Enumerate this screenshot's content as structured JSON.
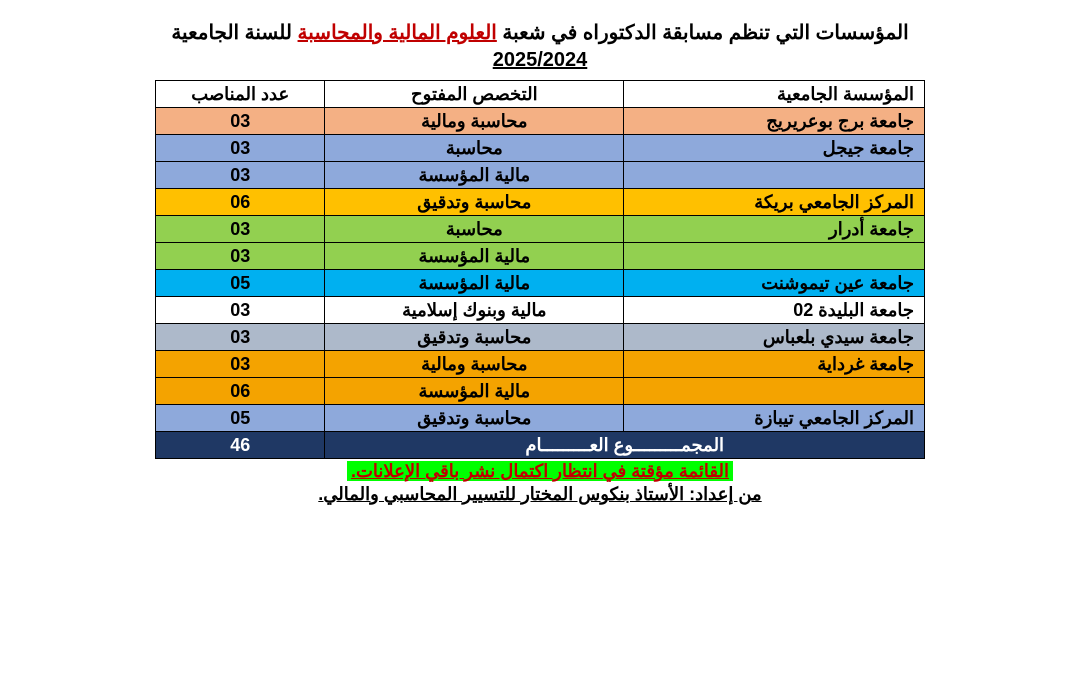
{
  "title_pre": "المؤسسات التي تنظم مسابقة الدكتوراه في شعبة ",
  "title_highlight": "العلوم المالية والمحاسبة",
  "title_post": " للسنة الجامعية",
  "year": "2025/2024",
  "headers": {
    "institution": "المؤسسة الجامعية",
    "speciality": "التخصص المفتوح",
    "positions": "عدد المناصب"
  },
  "colors": {
    "salmon": "#f4b084",
    "blue": "#8ea9db",
    "yellow": "#ffc000",
    "green": "#92d050",
    "cyan": "#00b0f0",
    "white": "#ffffff",
    "gray": "#adb9ca",
    "orange": "#f4a300",
    "navy": "#1f3864"
  },
  "rows": [
    {
      "inst": "جامعة برج بوعريريج",
      "spec": "محاسبة ومالية",
      "num": "03",
      "bg": "salmon"
    },
    {
      "inst": "جامعة جيجل",
      "spec": "محاسبة",
      "num": "03",
      "bg": "blue"
    },
    {
      "inst": "",
      "spec": "مالية المؤسسة",
      "num": "03",
      "bg": "blue"
    },
    {
      "inst": "المركز الجامعي بريكة",
      "spec": "محاسبة وتدقيق",
      "num": "06",
      "bg": "yellow"
    },
    {
      "inst": "جامعة أدرار",
      "spec": "محاسبة",
      "num": "03",
      "bg": "green"
    },
    {
      "inst": "",
      "spec": "مالية المؤسسة",
      "num": "03",
      "bg": "green"
    },
    {
      "inst": "جامعة عين تيموشنت",
      "spec": "مالية المؤسسة",
      "num": "05",
      "bg": "cyan"
    },
    {
      "inst": "جامعة البليدة 02",
      "spec": "مالية وبنوك إسلامية",
      "num": "03",
      "bg": "white"
    },
    {
      "inst": "جامعة سيدي بلعباس",
      "spec": "محاسبة وتدقيق",
      "num": "03",
      "bg": "gray"
    },
    {
      "inst": "جامعة غرداية",
      "spec": "محاسبة ومالية",
      "num": "03",
      "bg": "orange"
    },
    {
      "inst": "",
      "spec": "مالية المؤسسة",
      "num": "06",
      "bg": "orange"
    },
    {
      "inst": "المركز الجامعي تيبازة",
      "spec": "محاسبة وتدقيق",
      "num": "05",
      "bg": "blue"
    }
  ],
  "total_label": "المجمـــــــــوع العـــــــــام",
  "total_value": "46",
  "note": "القائمة مؤقتة في انتظار اكتمال نشر باقي الإعلانات.",
  "author": "من إعداد: الأستاذ بنكوس المختار للتسيير المحاسبي والمالي."
}
